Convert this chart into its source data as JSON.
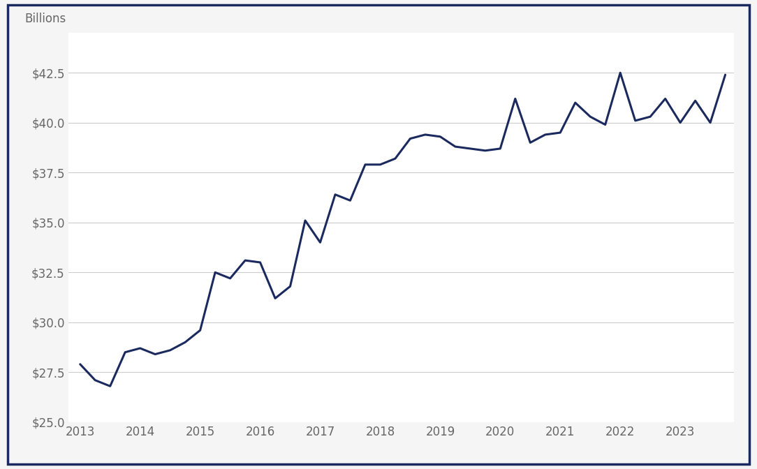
{
  "x_values": [
    2013.0,
    2013.25,
    2013.5,
    2013.75,
    2014.0,
    2014.25,
    2014.5,
    2014.75,
    2015.0,
    2015.25,
    2015.5,
    2015.75,
    2016.0,
    2016.25,
    2016.5,
    2016.75,
    2017.0,
    2017.25,
    2017.5,
    2017.75,
    2018.0,
    2018.25,
    2018.5,
    2018.75,
    2019.0,
    2019.25,
    2019.5,
    2019.75,
    2020.0,
    2020.25,
    2020.5,
    2020.75,
    2021.0,
    2021.25,
    2021.5,
    2021.75,
    2022.0,
    2022.25,
    2022.5,
    2022.75,
    2023.0,
    2023.25,
    2023.5,
    2023.75
  ],
  "y_values": [
    27.9,
    27.1,
    26.8,
    28.5,
    28.7,
    28.4,
    28.6,
    29.0,
    29.6,
    32.5,
    32.2,
    33.1,
    33.0,
    31.2,
    31.8,
    35.1,
    34.0,
    36.4,
    36.1,
    37.9,
    37.9,
    38.2,
    39.2,
    39.4,
    39.3,
    38.8,
    38.7,
    38.6,
    38.7,
    41.2,
    39.0,
    39.4,
    39.5,
    41.0,
    40.3,
    39.9,
    42.5,
    40.1,
    40.3,
    41.2,
    40.0,
    41.1,
    40.0,
    42.4
  ],
  "line_color": "#1b2a5e",
  "line_width": 2.2,
  "background_color": "#f5f5f5",
  "plot_background_color": "#ffffff",
  "border_color": "#1b2a5e",
  "ylabel": "Billions",
  "ylim": [
    25.0,
    44.5
  ],
  "yticks": [
    25.0,
    27.5,
    30.0,
    32.5,
    35.0,
    37.5,
    40.0,
    42.5
  ],
  "xlim": [
    2012.8,
    2023.9
  ],
  "xticks": [
    2013,
    2014,
    2015,
    2016,
    2017,
    2018,
    2019,
    2020,
    2021,
    2022,
    2023
  ],
  "grid_color": "#cccccc",
  "grid_linewidth": 0.8,
  "tick_label_color": "#666666",
  "ylabel_fontsize": 12,
  "tick_fontsize": 12
}
